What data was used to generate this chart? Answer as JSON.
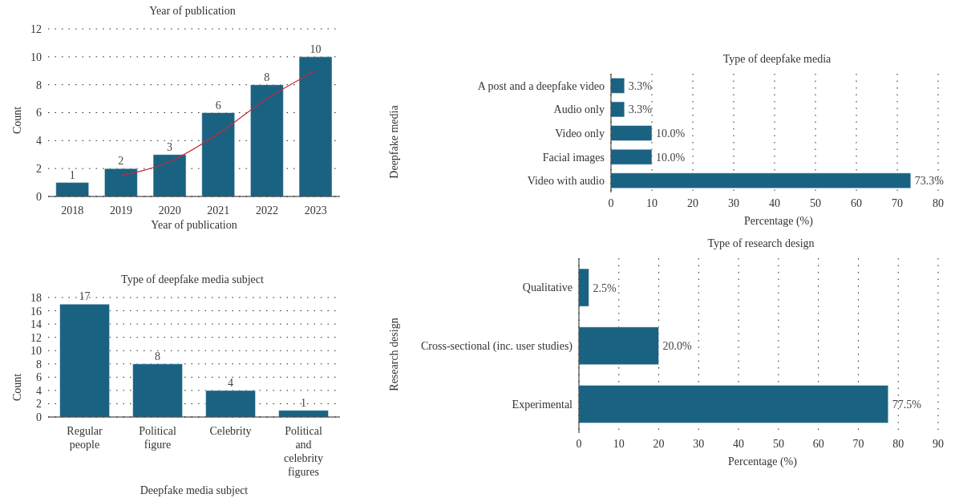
{
  "chart_data": [
    {
      "type": "bar",
      "title": "Year of publication",
      "xlabel": "Year of publication",
      "ylabel": "Count",
      "categories": [
        "2018",
        "2019",
        "2020",
        "2021",
        "2022",
        "2023"
      ],
      "series": [
        {
          "type": "bar",
          "color": "#1a6282",
          "values": [
            1,
            2,
            3,
            6,
            8,
            10
          ],
          "value_labels": [
            "1",
            "2",
            "3",
            "6",
            "8",
            "10"
          ]
        },
        {
          "type": "line",
          "color": "#c8283a",
          "values": [
            null,
            1.5,
            2.5,
            4.5,
            7.0,
            9.0
          ]
        }
      ],
      "ylim": [
        0,
        12
      ],
      "yticks": [
        0,
        2,
        4,
        6,
        8,
        10,
        12
      ],
      "grid": "y"
    },
    {
      "type": "bar",
      "orientation": "horizontal",
      "title": "Type of deepfake media",
      "xlabel": "Percentage (%)",
      "ylabel": "Deepfake media",
      "categories": [
        "A post and a deepfake video",
        "Audio only",
        "Video only",
        "Facial images",
        "Video with audio"
      ],
      "series": [
        {
          "color": "#1a6282",
          "values": [
            3.3,
            3.3,
            10.0,
            10.0,
            73.3
          ],
          "value_labels": [
            "3.3%",
            "3.3%",
            "10.0%",
            "10.0%",
            "73.3%"
          ]
        }
      ],
      "xlim": [
        0,
        80
      ],
      "xticks": [
        0,
        10,
        20,
        30,
        40,
        50,
        60,
        70,
        80
      ],
      "grid": "x"
    },
    {
      "type": "bar",
      "title": "Type of deepfake media subject",
      "xlabel": "Deepfake media subject",
      "ylabel": "Count",
      "categories": [
        "Regular people",
        "Political figure",
        "Celebrity",
        "Political and celebrity figures"
      ],
      "series": [
        {
          "color": "#1a6282",
          "values": [
            17,
            8,
            4,
            1
          ],
          "value_labels": [
            "17",
            "8",
            "4",
            "1"
          ]
        }
      ],
      "ylim": [
        0,
        18
      ],
      "yticks": [
        0,
        2,
        4,
        6,
        8,
        10,
        12,
        14,
        16,
        18
      ],
      "grid": "y"
    },
    {
      "type": "bar",
      "orientation": "horizontal",
      "title": "Type of research design",
      "xlabel": "Percentage (%)",
      "ylabel": "Research design",
      "categories": [
        "Qualitative",
        "Cross-sectional (inc. user studies)",
        "Experimental"
      ],
      "series": [
        {
          "color": "#1a6282",
          "values": [
            2.5,
            20.0,
            77.5
          ],
          "value_labels": [
            "2.5%",
            "20.0%",
            "77.5%"
          ]
        }
      ],
      "xlim": [
        0,
        90
      ],
      "xticks": [
        0,
        10,
        20,
        30,
        40,
        50,
        60,
        70,
        80,
        90
      ],
      "grid": "x"
    }
  ]
}
